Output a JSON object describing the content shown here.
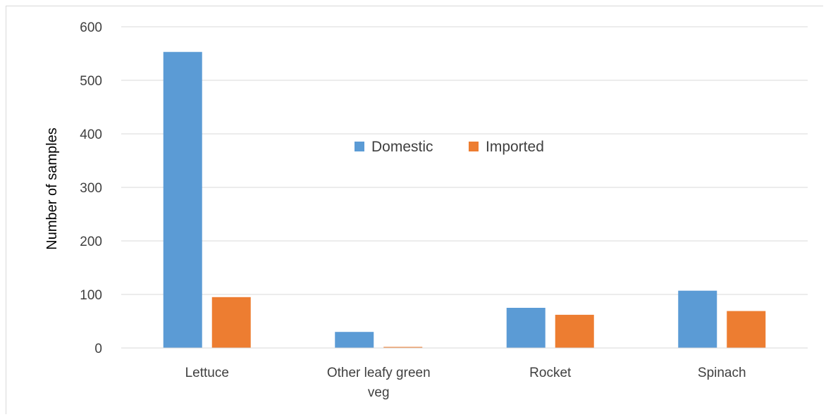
{
  "chart_data": {
    "type": "bar",
    "title": "",
    "xlabel": "",
    "ylabel": "Number of samples",
    "ylim": [
      0,
      600
    ],
    "yticks": [
      0,
      100,
      200,
      300,
      400,
      500,
      600
    ],
    "grid": true,
    "legend_position": "center-top",
    "categories": [
      [
        "Lettuce"
      ],
      [
        "Other leafy green",
        "veg"
      ],
      [
        "Rocket"
      ],
      [
        "Spinach"
      ]
    ],
    "series": [
      {
        "name": "Domestic",
        "color": "#5b9bd5",
        "values": [
          553,
          30,
          75,
          107
        ]
      },
      {
        "name": "Imported",
        "color": "#ed7d31",
        "values": [
          95,
          2,
          62,
          69
        ]
      }
    ]
  }
}
